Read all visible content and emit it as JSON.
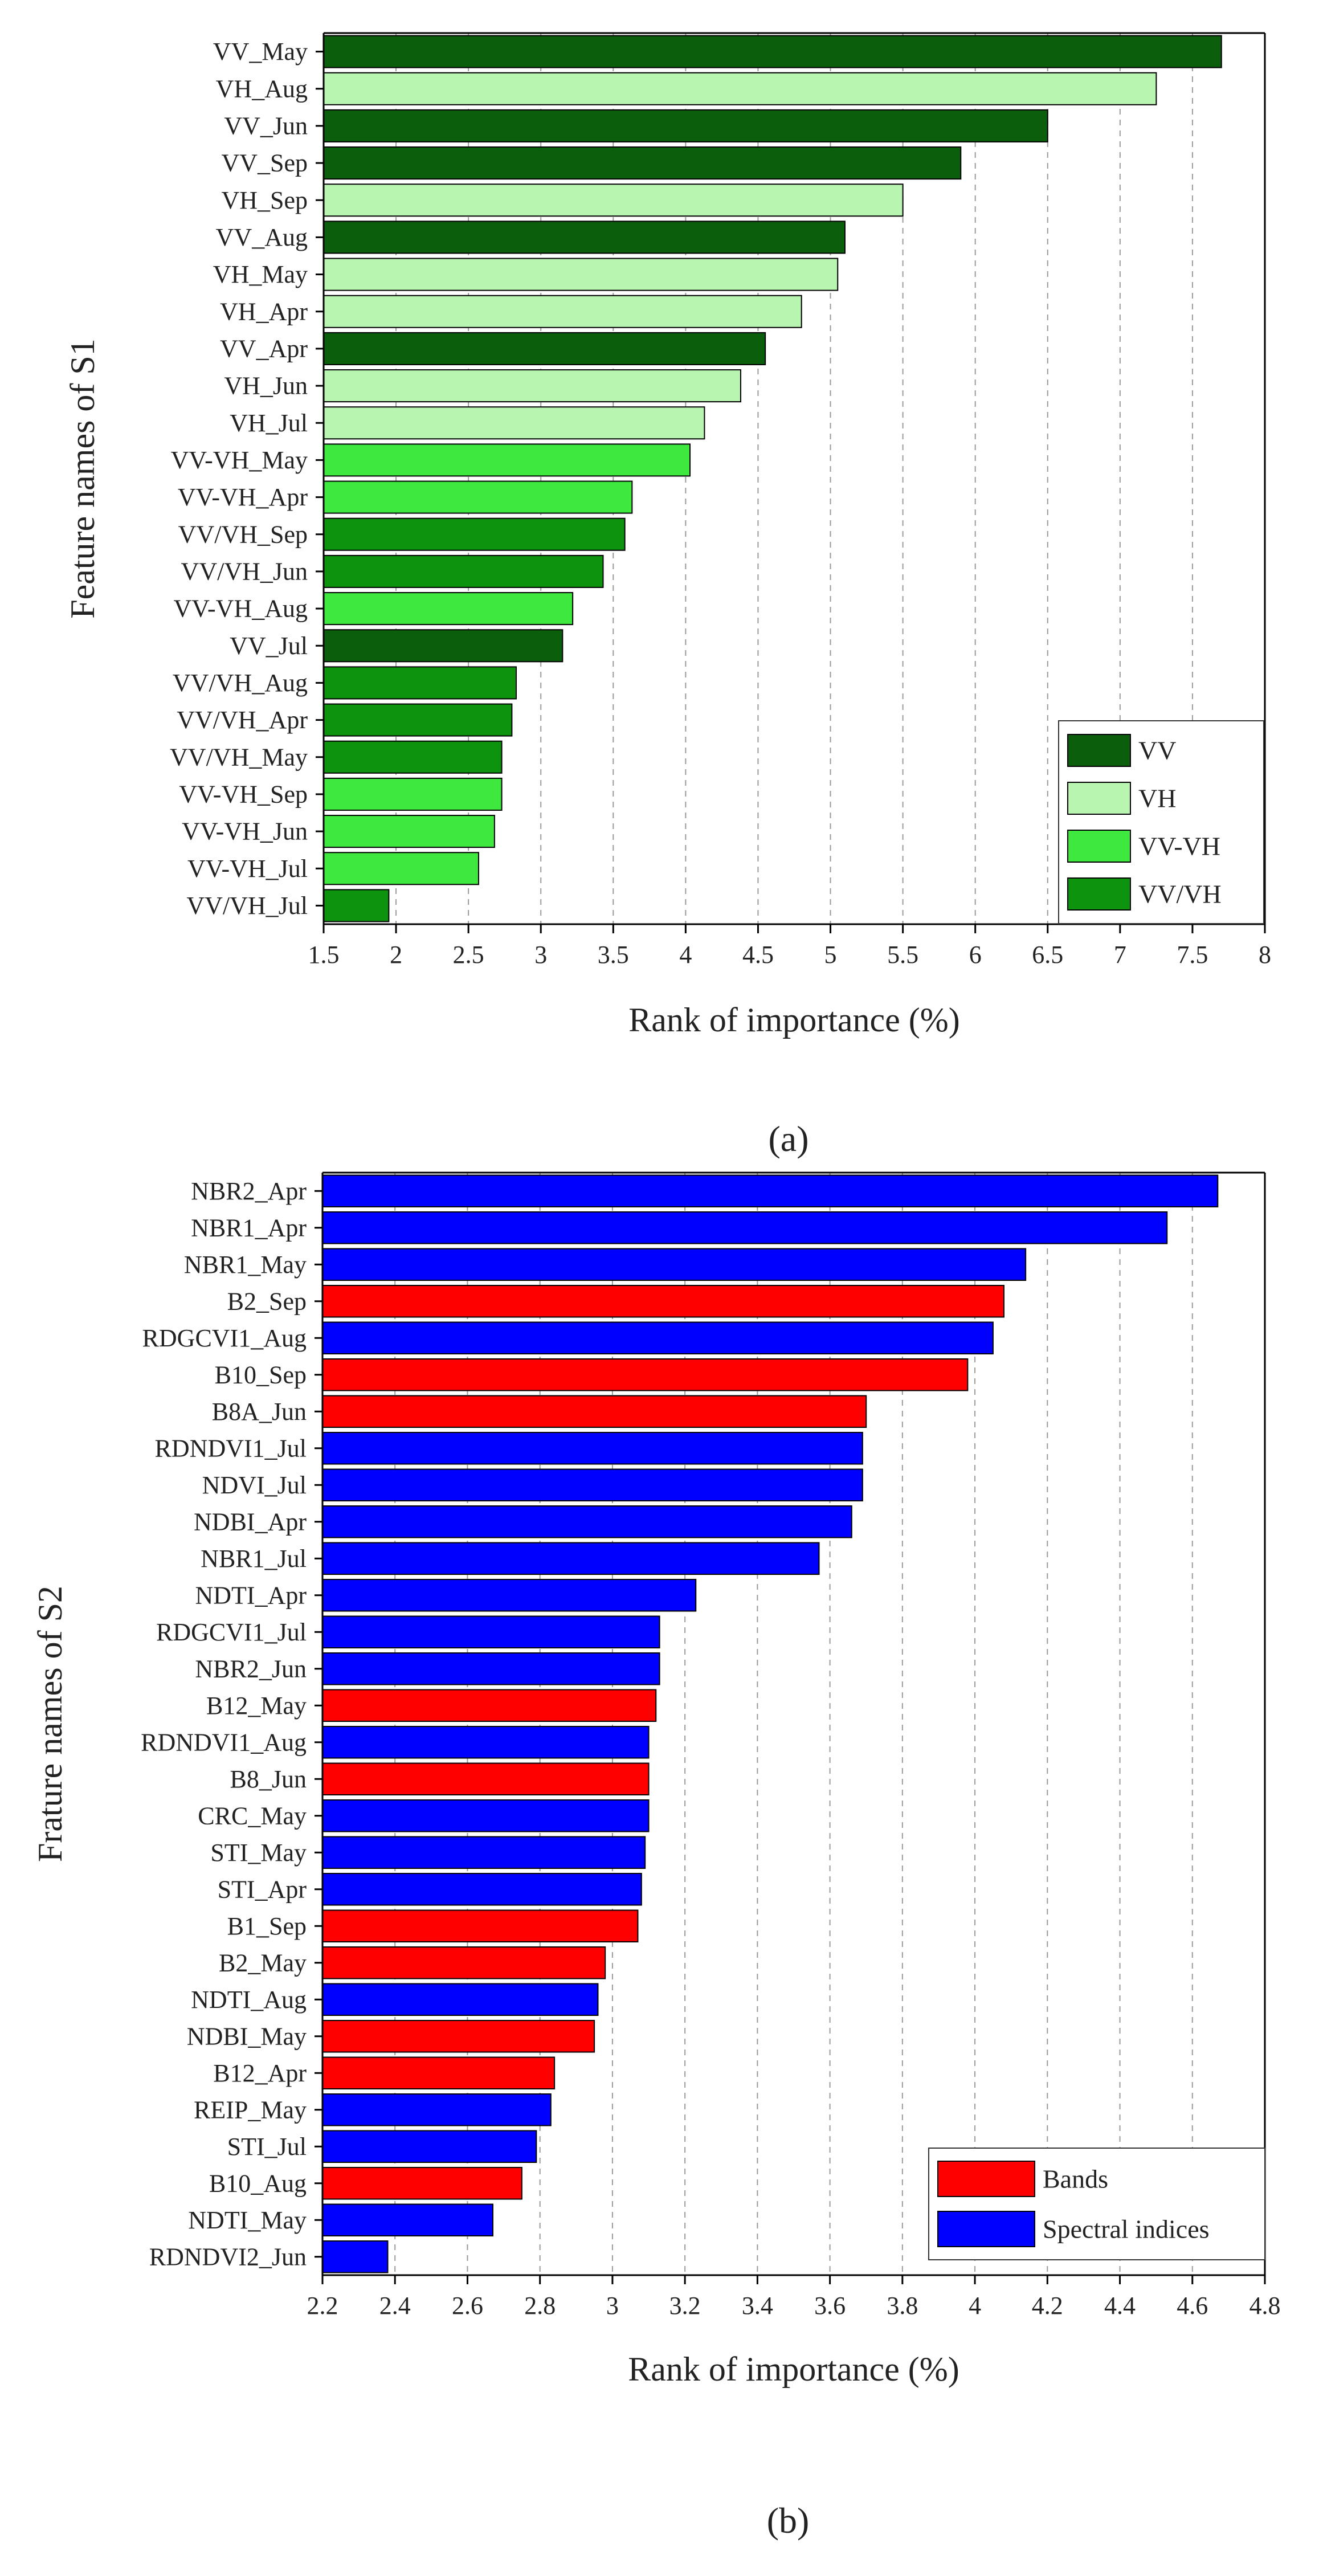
{
  "chart_data": [
    {
      "type": "bar",
      "orientation": "horizontal",
      "panel_label": "(a)",
      "xlabel": "Rank of importance (%)",
      "ylabel": "Feature names of S1",
      "xlim": [
        1.5,
        8
      ],
      "xticks": [
        "1.5",
        "2",
        "2.5",
        "3",
        "3.5",
        "4",
        "4.5",
        "5",
        "5.5",
        "6",
        "6.5",
        "7",
        "7.5",
        "8"
      ],
      "grid": "vertical dashed",
      "legend_position": "bottom-right",
      "legend": [
        {
          "name": "VV",
          "color": "#0b5e0b"
        },
        {
          "name": "VH",
          "color": "#b8f5b0"
        },
        {
          "name": "VV-VH",
          "color": "#3fe83f"
        },
        {
          "name": "VV/VH",
          "color": "#0e930e"
        }
      ],
      "categories": [
        "VV_May",
        "VH_Aug",
        "VV_Jun",
        "VV_Sep",
        "VH_Sep",
        "VV_Aug",
        "VH_May",
        "VH_Apr",
        "VV_Apr",
        "VH_Jun",
        "VH_Jul",
        "VV-VH_May",
        "VV-VH_Apr",
        "VV/VH_Sep",
        "VV/VH_Jun",
        "VV-VH_Aug",
        "VV_Jul",
        "VV/VH_Aug",
        "VV/VH_Apr",
        "VV/VH_May",
        "VV-VH_Sep",
        "VV-VH_Jun",
        "VV-VH_Jul",
        "VV/VH_Jul"
      ],
      "values": [
        7.7,
        7.25,
        6.5,
        5.9,
        5.5,
        5.1,
        5.05,
        4.8,
        4.55,
        4.38,
        4.13,
        4.03,
        3.63,
        3.58,
        3.43,
        3.22,
        3.15,
        2.83,
        2.8,
        2.73,
        2.73,
        2.68,
        2.57,
        1.95
      ],
      "groups": [
        "VV",
        "VH",
        "VV",
        "VV",
        "VH",
        "VV",
        "VH",
        "VH",
        "VV",
        "VH",
        "VH",
        "VV-VH",
        "VV-VH",
        "VV/VH",
        "VV/VH",
        "VV-VH",
        "VV",
        "VV/VH",
        "VV/VH",
        "VV/VH",
        "VV-VH",
        "VV-VH",
        "VV-VH",
        "VV/VH"
      ]
    },
    {
      "type": "bar",
      "orientation": "horizontal",
      "panel_label": "(b)",
      "xlabel": "Rank of importance (%)",
      "ylabel": "Frature names of S2",
      "xlim": [
        2.2,
        4.8
      ],
      "xticks": [
        "2.2",
        "2.4",
        "2.6",
        "2.8",
        "3",
        "3.2",
        "3.4",
        "3.6",
        "3.8",
        "4",
        "4.2",
        "4.4",
        "4.6",
        "4.8"
      ],
      "grid": "vertical dashed",
      "legend_position": "bottom-right",
      "legend": [
        {
          "name": "Bands",
          "color": "#ff0000"
        },
        {
          "name": "Spectral indices",
          "color": "#0000ff"
        }
      ],
      "categories": [
        "NBR2_Apr",
        "NBR1_Apr",
        "NBR1_May",
        "B2_Sep",
        "RDGCVI1_Aug",
        "B10_Sep",
        "B8A_Jun",
        "RDNDVI1_Jul",
        "NDVI_Jul",
        "NDBI_Apr",
        "NBR1_Jul",
        "NDTI_Apr",
        "RDGCVI1_Jul",
        "NBR2_Jun",
        "B12_May",
        "RDNDVI1_Aug",
        "B8_Jun",
        "CRC_May",
        "STI_May",
        "STI_Apr",
        "B1_Sep",
        "B2_May",
        "NDTI_Aug",
        "NDBI_May",
        "B12_Apr",
        "REIP_May",
        "STI_Jul",
        "B10_Aug",
        "NDTI_May",
        "RDNDVI2_Jun"
      ],
      "values": [
        4.67,
        4.53,
        4.14,
        4.08,
        4.05,
        3.98,
        3.7,
        3.69,
        3.69,
        3.66,
        3.57,
        3.23,
        3.13,
        3.13,
        3.12,
        3.1,
        3.1,
        3.1,
        3.09,
        3.08,
        3.07,
        2.98,
        2.96,
        2.95,
        2.84,
        2.83,
        2.79,
        2.75,
        2.67,
        2.38
      ],
      "groups": [
        "Spectral indices",
        "Spectral indices",
        "Spectral indices",
        "Bands",
        "Spectral indices",
        "Bands",
        "Bands",
        "Spectral indices",
        "Spectral indices",
        "Spectral indices",
        "Spectral indices",
        "Spectral indices",
        "Spectral indices",
        "Spectral indices",
        "Bands",
        "Spectral indices",
        "Bands",
        "Spectral indices",
        "Spectral indices",
        "Spectral indices",
        "Bands",
        "Bands",
        "Spectral indices",
        "Bands",
        "Bands",
        "Spectral indices",
        "Spectral indices",
        "Bands",
        "Spectral indices",
        "Spectral indices"
      ]
    }
  ]
}
